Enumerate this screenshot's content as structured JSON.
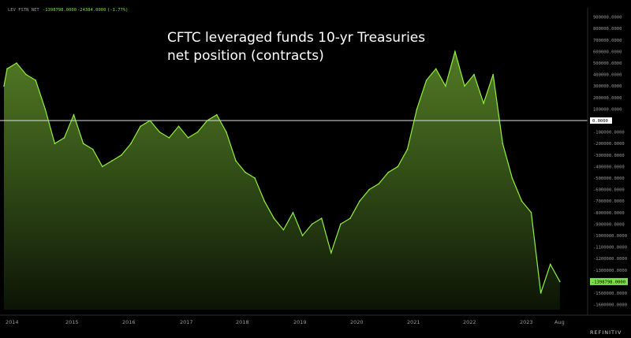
{
  "header": {
    "instrument": "LEV FSTN NET",
    "last_value": "-1398798.0000",
    "change": "-24384.0000",
    "change_pct": "(-1.77%)",
    "value_color": "#7be04a"
  },
  "branding": {
    "vendor": "REFINITIV"
  },
  "zero_tag": "0.0000",
  "last_tag": "-1398798.0000",
  "colors": {
    "line": "#8ef040",
    "fill_top": "#5f8f2a",
    "fill_bottom": "#0c1506",
    "zero_line": "#e0e0e0",
    "background": "#000000"
  },
  "chart_data": {
    "type": "area",
    "title": "CFTC leveraged funds 10-yr Treasuries\nnet position (contracts)",
    "xlabel": "",
    "ylabel": "",
    "ylim": [
      -1700000,
      1000000
    ],
    "zero_line": 0,
    "x_ticks": [
      "2014",
      "2015",
      "2016",
      "2017",
      "2018",
      "2019",
      "2020",
      "2021",
      "2022",
      "2023",
      "Aug"
    ],
    "y_ticks": [
      "900000.0000",
      "800000.0000",
      "700000.0000",
      "600000.0000",
      "500000.0000",
      "400000.0000",
      "300000.0000",
      "200000.0000",
      "100000.0000",
      "0.0000",
      "-100000.0000",
      "-200000.0000",
      "-300000.0000",
      "-400000.0000",
      "-500000.0000",
      "-600000.0000",
      "-700000.0000",
      "-800000.0000",
      "-900000.0000",
      "-1000000.0000",
      "-1100000.0000",
      "-1200000.0000",
      "-1300000.0000",
      "-1400000.0000",
      "-1500000.0000",
      "-1600000.0000"
    ],
    "series": [
      {
        "x": [
          "2013-10",
          "2013-12",
          "2014-02",
          "2014-04",
          "2014-06",
          "2014-08",
          "2014-10",
          "2014-12",
          "2015-02",
          "2015-04",
          "2015-06",
          "2015-08",
          "2015-10",
          "2015-12",
          "2016-02",
          "2016-04",
          "2016-06",
          "2016-08",
          "2016-10",
          "2016-12",
          "2017-02",
          "2017-04",
          "2017-06",
          "2017-08",
          "2017-10",
          "2017-12",
          "2018-02",
          "2018-04",
          "2018-06",
          "2018-08",
          "2018-10",
          "2018-12",
          "2019-02",
          "2019-04",
          "2019-06",
          "2019-08",
          "2019-10",
          "2019-12",
          "2020-02",
          "2020-04",
          "2020-06",
          "2020-08",
          "2020-10",
          "2020-12",
          "2021-02",
          "2021-04",
          "2021-06",
          "2021-08",
          "2021-10",
          "2021-12",
          "2022-02",
          "2022-04",
          "2022-06",
          "2022-08",
          "2022-10",
          "2022-12",
          "2023-02",
          "2023-04",
          "2023-06",
          "2023-08"
        ],
        "values": [
          300000,
          450000,
          500000,
          400000,
          350000,
          100000,
          -200000,
          -150000,
          50000,
          -200000,
          -250000,
          -400000,
          -350000,
          -300000,
          -200000,
          -50000,
          0,
          -100000,
          -150000,
          -50000,
          -150000,
          -100000,
          0,
          50000,
          -100000,
          -350000,
          -450000,
          -500000,
          -700000,
          -850000,
          -950000,
          -800000,
          -1000000,
          -900000,
          -850000,
          -1150000,
          -900000,
          -850000,
          -700000,
          -600000,
          -550000,
          -450000,
          -400000,
          -250000,
          100000,
          350000,
          450000,
          300000,
          600000,
          300000,
          400000,
          150000,
          400000,
          -200000,
          -500000,
          -700000,
          -800000,
          -1500000,
          -1250000,
          -1400000
        ]
      }
    ]
  }
}
